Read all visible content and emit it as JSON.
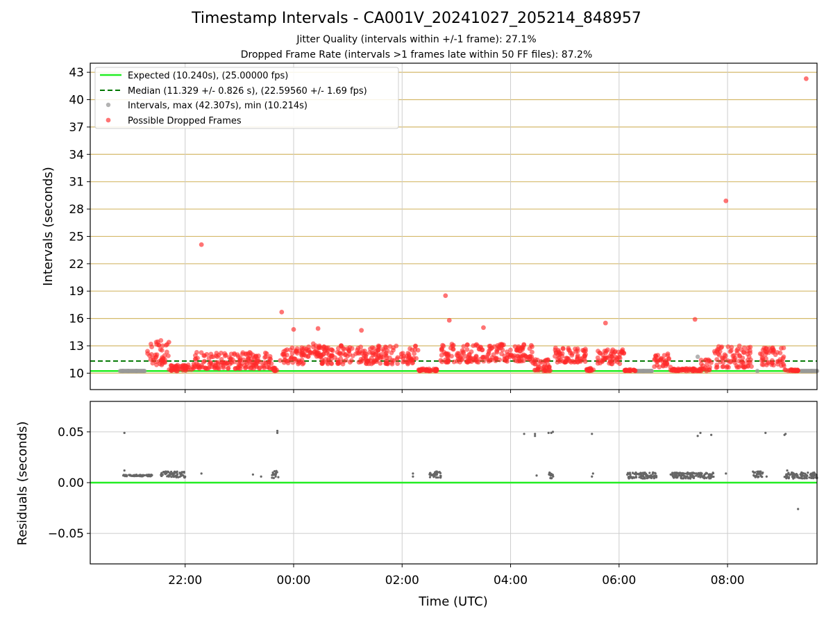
{
  "header": {
    "title": "Timestamp Intervals - CA001V_20241027_205214_848957",
    "subtitle_jitter": "Jitter Quality (intervals within +/-1 frame): 27.1%",
    "subtitle_dropped": "Dropped Frame Rate (intervals >1 frames late within 50 FF files): 87.2%"
  },
  "colors": {
    "expected_line": "#22ee22",
    "median_line": "#007700",
    "intervals": "#999999",
    "dropped": "#ff2a2a",
    "residuals": "#666666",
    "hgrid_top": "#d4b96a",
    "grid": "#cccccc"
  },
  "chart_data": [
    {
      "type": "scatter",
      "panel": "top",
      "ylabel": "Intervals (seconds)",
      "xlabel": "",
      "x_unit": "hours since 00:00 UTC (negative = previous day)",
      "xlim": [
        -3.75,
        9.65
      ],
      "ylim": [
        8.2,
        44.0
      ],
      "yticks": [
        10,
        13,
        16,
        19,
        22,
        25,
        28,
        31,
        34,
        37,
        40,
        43
      ],
      "xticks": [
        -2,
        0,
        2,
        4,
        6,
        8
      ],
      "xtick_labels": [
        "22:00",
        "00:00",
        "02:00",
        "04:00",
        "06:00",
        "08:00"
      ],
      "grid": "horizontal and vertical",
      "legend_position": "top-left",
      "legend": [
        "Expected (10.240s), (25.00000 fps)",
        "Median (11.329 +/- 0.826 s), (22.59560 +/- 1.69 fps)",
        "Intervals, max (42.307s), min (10.214s)",
        "Possible Dropped Frames"
      ],
      "expected_line": 10.24,
      "median_line": 11.329,
      "interval_points_x": [
        -3.15,
        -3.05,
        -2.9,
        -2.75,
        6.45,
        6.6,
        7.45,
        8.55,
        9.55
      ],
      "interval_points_y": [
        10.24,
        10.24,
        10.24,
        10.24,
        10.24,
        10.24,
        11.8,
        10.24,
        10.24
      ],
      "dropped_clusters": [
        {
          "x0": -2.7,
          "x1": -2.3,
          "ymin": 10.9,
          "ymax": 13.6
        },
        {
          "x0": -2.3,
          "x1": -1.85,
          "ymin": 10.24,
          "ymax": 10.9
        },
        {
          "x0": -1.85,
          "x1": -0.4,
          "ymin": 10.5,
          "ymax": 12.3
        },
        {
          "x0": -0.4,
          "x1": -0.3,
          "ymin": 10.24,
          "ymax": 10.6
        },
        {
          "x0": -0.25,
          "x1": 0.2,
          "ymin": 11.0,
          "ymax": 12.8
        },
        {
          "x0": 0.2,
          "x1": 0.5,
          "ymin": 11.8,
          "ymax": 13.3
        },
        {
          "x0": 0.5,
          "x1": 2.3,
          "ymin": 11.0,
          "ymax": 13.1
        },
        {
          "x0": 2.3,
          "x1": 2.65,
          "ymin": 10.24,
          "ymax": 10.5
        },
        {
          "x0": 2.7,
          "x1": 3.5,
          "ymin": 11.2,
          "ymax": 13.2
        },
        {
          "x0": 3.5,
          "x1": 4.4,
          "ymin": 11.3,
          "ymax": 13.4
        },
        {
          "x0": 4.4,
          "x1": 4.75,
          "ymin": 10.24,
          "ymax": 11.5
        },
        {
          "x0": 4.8,
          "x1": 5.4,
          "ymin": 11.2,
          "ymax": 12.8
        },
        {
          "x0": 5.4,
          "x1": 5.55,
          "ymin": 10.24,
          "ymax": 10.6
        },
        {
          "x0": 5.6,
          "x1": 6.1,
          "ymin": 11.0,
          "ymax": 12.7
        },
        {
          "x0": 6.1,
          "x1": 6.3,
          "ymin": 10.24,
          "ymax": 10.4
        },
        {
          "x0": 6.65,
          "x1": 6.95,
          "ymin": 10.6,
          "ymax": 12.2
        },
        {
          "x0": 6.95,
          "x1": 7.5,
          "ymin": 10.24,
          "ymax": 10.5
        },
        {
          "x0": 7.5,
          "x1": 7.7,
          "ymin": 10.24,
          "ymax": 11.5
        },
        {
          "x0": 7.75,
          "x1": 8.45,
          "ymin": 10.6,
          "ymax": 13.0
        },
        {
          "x0": 8.6,
          "x1": 9.05,
          "ymin": 10.8,
          "ymax": 12.8
        },
        {
          "x0": 9.05,
          "x1": 9.3,
          "ymin": 10.24,
          "ymax": 10.4
        }
      ],
      "dropped_outliers_x": [
        -1.7,
        7.97,
        -0.22,
        2.8,
        2.87,
        5.75,
        7.4,
        9.45,
        3.5,
        -2.3,
        0.0,
        0.45,
        1.25
      ],
      "dropped_outliers_y": [
        24.1,
        28.9,
        16.7,
        18.5,
        15.8,
        15.5,
        15.9,
        42.3,
        15.0,
        13.4,
        14.8,
        14.9,
        14.7
      ]
    },
    {
      "type": "scatter",
      "panel": "bottom",
      "ylabel": "Residuals (seconds)",
      "xlabel": "Time (UTC)",
      "xlim": [
        -3.75,
        9.65
      ],
      "ylim": [
        -0.08,
        0.08
      ],
      "yticks": [
        0.05,
        0.0,
        -0.05
      ],
      "ytick_labels": [
        "0.05",
        "0.00",
        "−0.05"
      ],
      "xticks": [
        -2,
        0,
        2,
        4,
        6,
        8
      ],
      "xtick_labels": [
        "22:00",
        "00:00",
        "02:00",
        "04:00",
        "06:00",
        "08:00"
      ],
      "grid": "horizontal and vertical",
      "zero_line": 0.0,
      "residual_clusters": [
        {
          "x0": -3.15,
          "x1": -2.6,
          "y": 0.007,
          "spread": 0.0008
        },
        {
          "x0": -2.45,
          "x1": -2.0,
          "y": 0.008,
          "spread": 0.003
        },
        {
          "x0": -0.4,
          "x1": -0.28,
          "y": 0.008,
          "spread": 0.004
        },
        {
          "x0": 2.5,
          "x1": 2.72,
          "y": 0.008,
          "spread": 0.003
        },
        {
          "x0": 4.7,
          "x1": 4.8,
          "y": 0.007,
          "spread": 0.003
        },
        {
          "x0": 6.15,
          "x1": 6.7,
          "y": 0.007,
          "spread": 0.003
        },
        {
          "x0": 6.95,
          "x1": 7.55,
          "y": 0.007,
          "spread": 0.003
        },
        {
          "x0": 7.55,
          "x1": 7.75,
          "y": 0.007,
          "spread": 0.003
        },
        {
          "x0": 8.45,
          "x1": 8.65,
          "y": 0.008,
          "spread": 0.003
        },
        {
          "x0": 9.05,
          "x1": 9.65,
          "y": 0.007,
          "spread": 0.003
        }
      ],
      "residual_points_x": [
        -3.12,
        -3.12,
        -2.3,
        -1.7,
        -0.75,
        -0.6,
        -0.3,
        -0.3,
        2.2,
        2.2,
        4.25,
        4.45,
        4.45,
        4.48,
        4.7,
        4.75,
        4.78,
        5.5,
        5.5,
        5.52,
        7.45,
        7.5,
        7.7,
        7.97,
        8.7,
        8.72,
        9.05,
        9.07,
        9.1,
        9.3
      ],
      "residual_points_y": [
        0.049,
        0.012,
        0.006,
        0.009,
        0.008,
        0.006,
        0.049,
        0.051,
        0.009,
        0.006,
        0.048,
        0.046,
        0.048,
        0.007,
        0.049,
        0.049,
        0.05,
        0.048,
        0.006,
        0.009,
        0.046,
        0.049,
        0.047,
        0.009,
        0.049,
        0.006,
        0.047,
        0.048,
        0.012,
        -0.026
      ]
    }
  ]
}
